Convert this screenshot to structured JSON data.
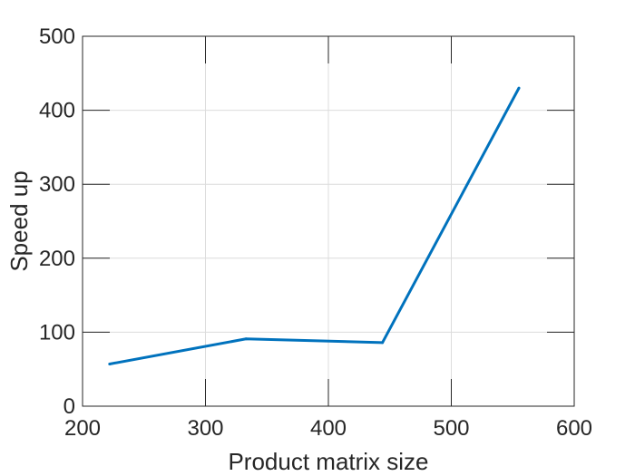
{
  "chart_data": {
    "type": "line",
    "xlabel": "Product matrix size",
    "ylabel": "Speed up",
    "xlim": [
      200,
      600
    ],
    "ylim": [
      0,
      500
    ],
    "xticks": [
      200,
      300,
      400,
      500,
      600
    ],
    "yticks": [
      0,
      100,
      200,
      300,
      400,
      500
    ],
    "grid": true,
    "series": [
      {
        "color": "#0072BD",
        "x": [
          222,
          333,
          444,
          555
        ],
        "y": [
          57,
          91,
          86,
          430
        ]
      }
    ]
  }
}
